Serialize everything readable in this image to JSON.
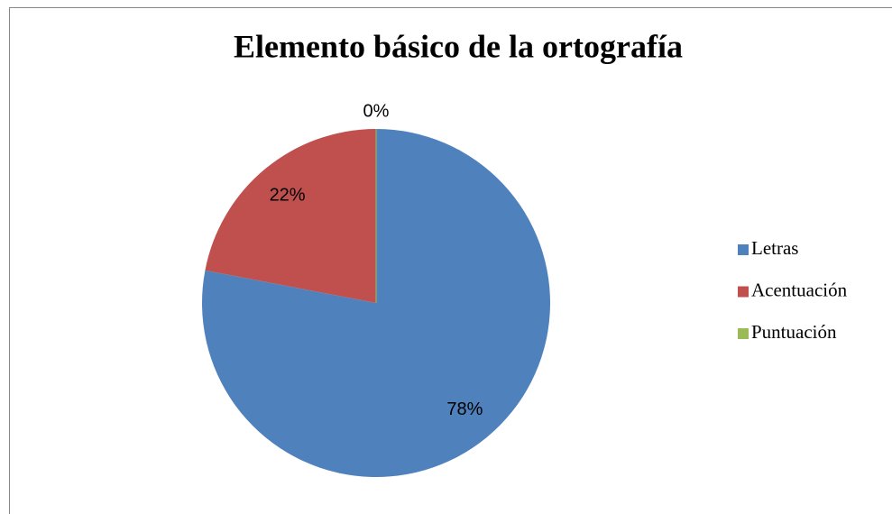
{
  "chart_data": {
    "type": "pie",
    "title": "Elemento básico de la ortografía",
    "categories": [
      "Letras",
      "Acentuación",
      "Puntuación"
    ],
    "values": [
      78,
      22,
      0
    ],
    "value_labels": [
      "78%",
      "22%",
      "0%"
    ],
    "colors": [
      "#4f81bd",
      "#c0504d",
      "#9bbb59"
    ],
    "legend": "right"
  }
}
